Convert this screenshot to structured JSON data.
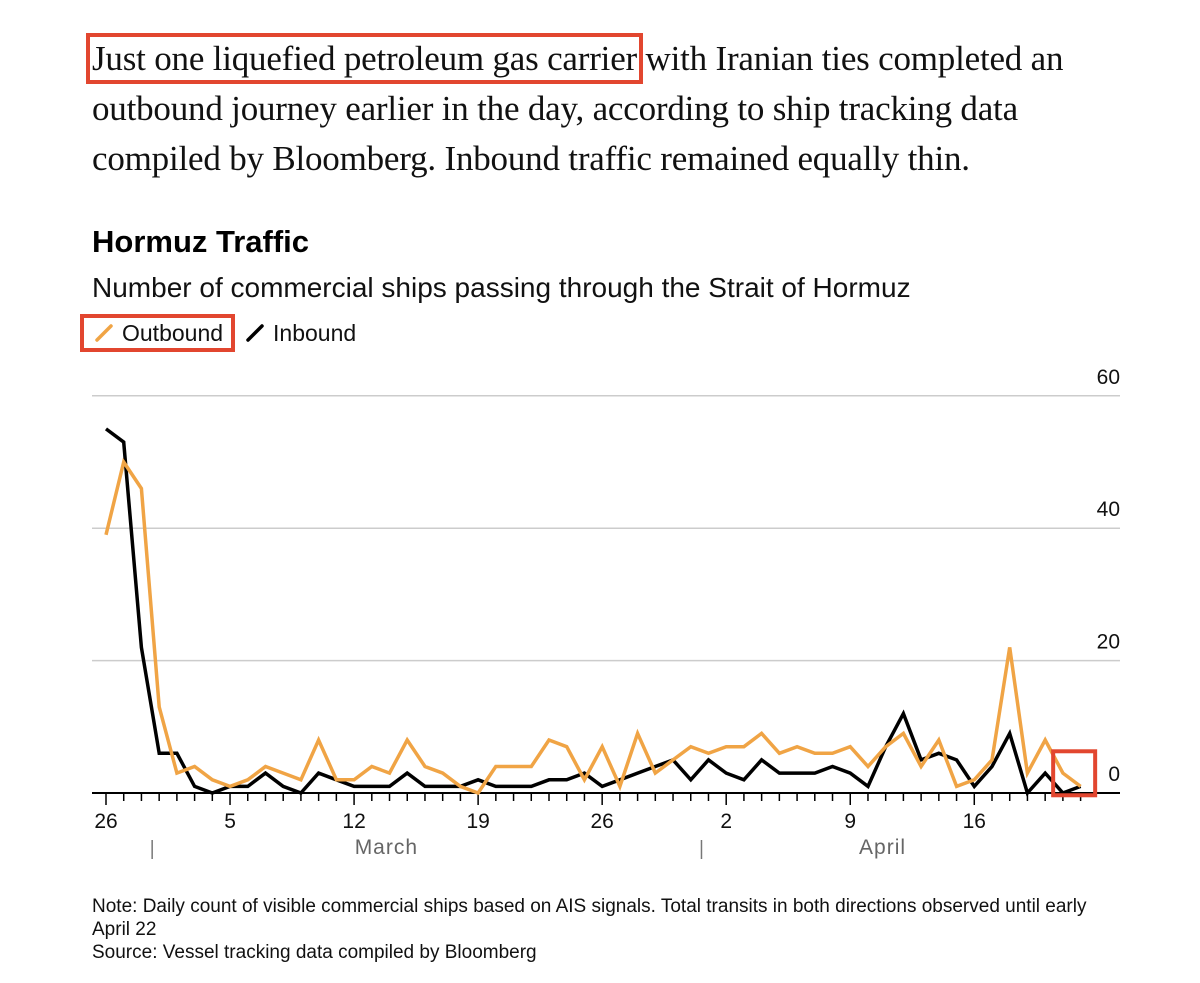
{
  "article": {
    "lede_highlight": "Just one liquefied petroleum gas carrier",
    "lede_rest": " with Iranian ties completed an outbound journey earlier in the day, according to ship tracking data compiled by Bloomberg. Inbound traffic remained equally thin."
  },
  "colors": {
    "outbound": "#f0a445",
    "inbound": "#000000",
    "highlight": "#e2462f",
    "gridline": "#cccccc"
  },
  "legend": {
    "items": [
      {
        "label": "Outbound",
        "icon": "orange-line-icon"
      },
      {
        "label": "Inbound",
        "icon": "black-line-icon"
      }
    ]
  },
  "footer": {
    "note": "Note: Daily count of visible commercial ships based on AIS signals. Total transits in both directions observed until early April 22",
    "source": "Source: Vessel tracking data compiled by Bloomberg"
  },
  "chart_data": {
    "type": "line",
    "title": "Hormuz Traffic",
    "subtitle": "Number of commercial ships passing through the Strait of Hormuz",
    "xlabel": "",
    "ylabel": "",
    "ylim": [
      0,
      60
    ],
    "yticks": [
      0,
      20,
      40,
      60
    ],
    "grid": true,
    "legend_position": "top-left",
    "x_start": "Feb 26",
    "x_end": "Apr 22",
    "xtick_labels": [
      "26",
      "5",
      "12",
      "19",
      "26",
      "2",
      "9",
      "16"
    ],
    "xtick_indices": [
      0,
      7,
      14,
      21,
      28,
      35,
      42,
      49
    ],
    "month_labels": [
      {
        "label": "March",
        "index": 16.5
      },
      {
        "label": "April",
        "index": 44.5
      }
    ],
    "month_dividers": [
      3,
      34
    ],
    "series": [
      {
        "name": "Outbound",
        "color": "#f0a445",
        "values": [
          39,
          50,
          46,
          13,
          3,
          4,
          2,
          1,
          2,
          4,
          3,
          2,
          8,
          2,
          2,
          4,
          3,
          8,
          4,
          3,
          1,
          0,
          4,
          4,
          4,
          8,
          7,
          2,
          7,
          1,
          9,
          3,
          5,
          7,
          6,
          7,
          7,
          9,
          6,
          7,
          6,
          6,
          7,
          4,
          7,
          9,
          4,
          8,
          1,
          2,
          5,
          22,
          3,
          8,
          3,
          1
        ]
      },
      {
        "name": "Inbound",
        "color": "#000000",
        "values": [
          55,
          53,
          22,
          6,
          6,
          1,
          0,
          1,
          1,
          3,
          1,
          0,
          3,
          2,
          1,
          1,
          1,
          3,
          1,
          1,
          1,
          2,
          1,
          1,
          1,
          2,
          2,
          3,
          1,
          2,
          3,
          4,
          5,
          2,
          5,
          3,
          2,
          5,
          3,
          3,
          3,
          4,
          3,
          1,
          7,
          12,
          5,
          6,
          5,
          1,
          4,
          9,
          0,
          3,
          0,
          1
        ]
      }
    ],
    "annotations": [
      {
        "type": "highlight-box",
        "target": "last data points (Apr 21-22)"
      }
    ]
  }
}
